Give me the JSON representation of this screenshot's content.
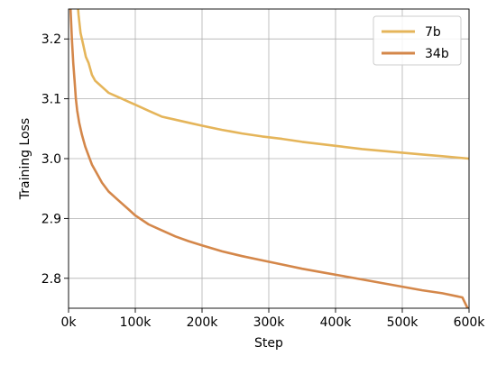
{
  "chart_data": {
    "type": "line",
    "xlabel": "Step",
    "ylabel": "Training Loss",
    "xlim": [
      0,
      600000
    ],
    "ylim": [
      2.75,
      3.25
    ],
    "x_ticks": [
      0,
      100000,
      200000,
      300000,
      400000,
      500000,
      600000
    ],
    "x_tick_labels": [
      "0k",
      "100k",
      "200k",
      "300k",
      "400k",
      "500k",
      "600k"
    ],
    "y_ticks": [
      2.8,
      2.9,
      3.0,
      3.1,
      3.2
    ],
    "y_tick_labels": [
      "2.8",
      "2.9",
      "3.0",
      "3.1",
      "3.2"
    ],
    "grid": true,
    "legend_position": "top-right",
    "series": [
      {
        "name": "7b",
        "color": "#e5b55a",
        "x": [
          12000,
          15000,
          18000,
          22000,
          26000,
          30000,
          35000,
          40000,
          45000,
          50000,
          60000,
          70000,
          80000,
          90000,
          100000,
          120000,
          140000,
          160000,
          180000,
          200000,
          230000,
          260000,
          290000,
          320000,
          350000,
          380000,
          410000,
          440000,
          470000,
          500000,
          530000,
          560000,
          600000
        ],
        "y": [
          3.28,
          3.24,
          3.21,
          3.19,
          3.17,
          3.16,
          3.14,
          3.13,
          3.125,
          3.12,
          3.11,
          3.105,
          3.1,
          3.095,
          3.09,
          3.08,
          3.07,
          3.065,
          3.06,
          3.055,
          3.048,
          3.042,
          3.037,
          3.033,
          3.028,
          3.024,
          3.02,
          3.016,
          3.013,
          3.01,
          3.007,
          3.004,
          3.0
        ]
      },
      {
        "name": "34b",
        "color": "#d4874a",
        "x": [
          3000,
          5000,
          7000,
          9000,
          11000,
          13000,
          16000,
          20000,
          25000,
          30000,
          35000,
          40000,
          45000,
          50000,
          60000,
          70000,
          80000,
          90000,
          100000,
          120000,
          140000,
          160000,
          180000,
          200000,
          230000,
          260000,
          290000,
          320000,
          350000,
          380000,
          410000,
          440000,
          470000,
          500000,
          530000,
          560000,
          590000,
          600000
        ],
        "y": [
          3.25,
          3.2,
          3.16,
          3.13,
          3.1,
          3.08,
          3.06,
          3.04,
          3.02,
          3.005,
          2.99,
          2.98,
          2.97,
          2.96,
          2.945,
          2.935,
          2.925,
          2.915,
          2.905,
          2.89,
          2.88,
          2.87,
          2.862,
          2.855,
          2.845,
          2.837,
          2.83,
          2.823,
          2.816,
          2.81,
          2.804,
          2.798,
          2.792,
          2.786,
          2.78,
          2.775,
          2.768,
          2.745
        ]
      }
    ]
  }
}
